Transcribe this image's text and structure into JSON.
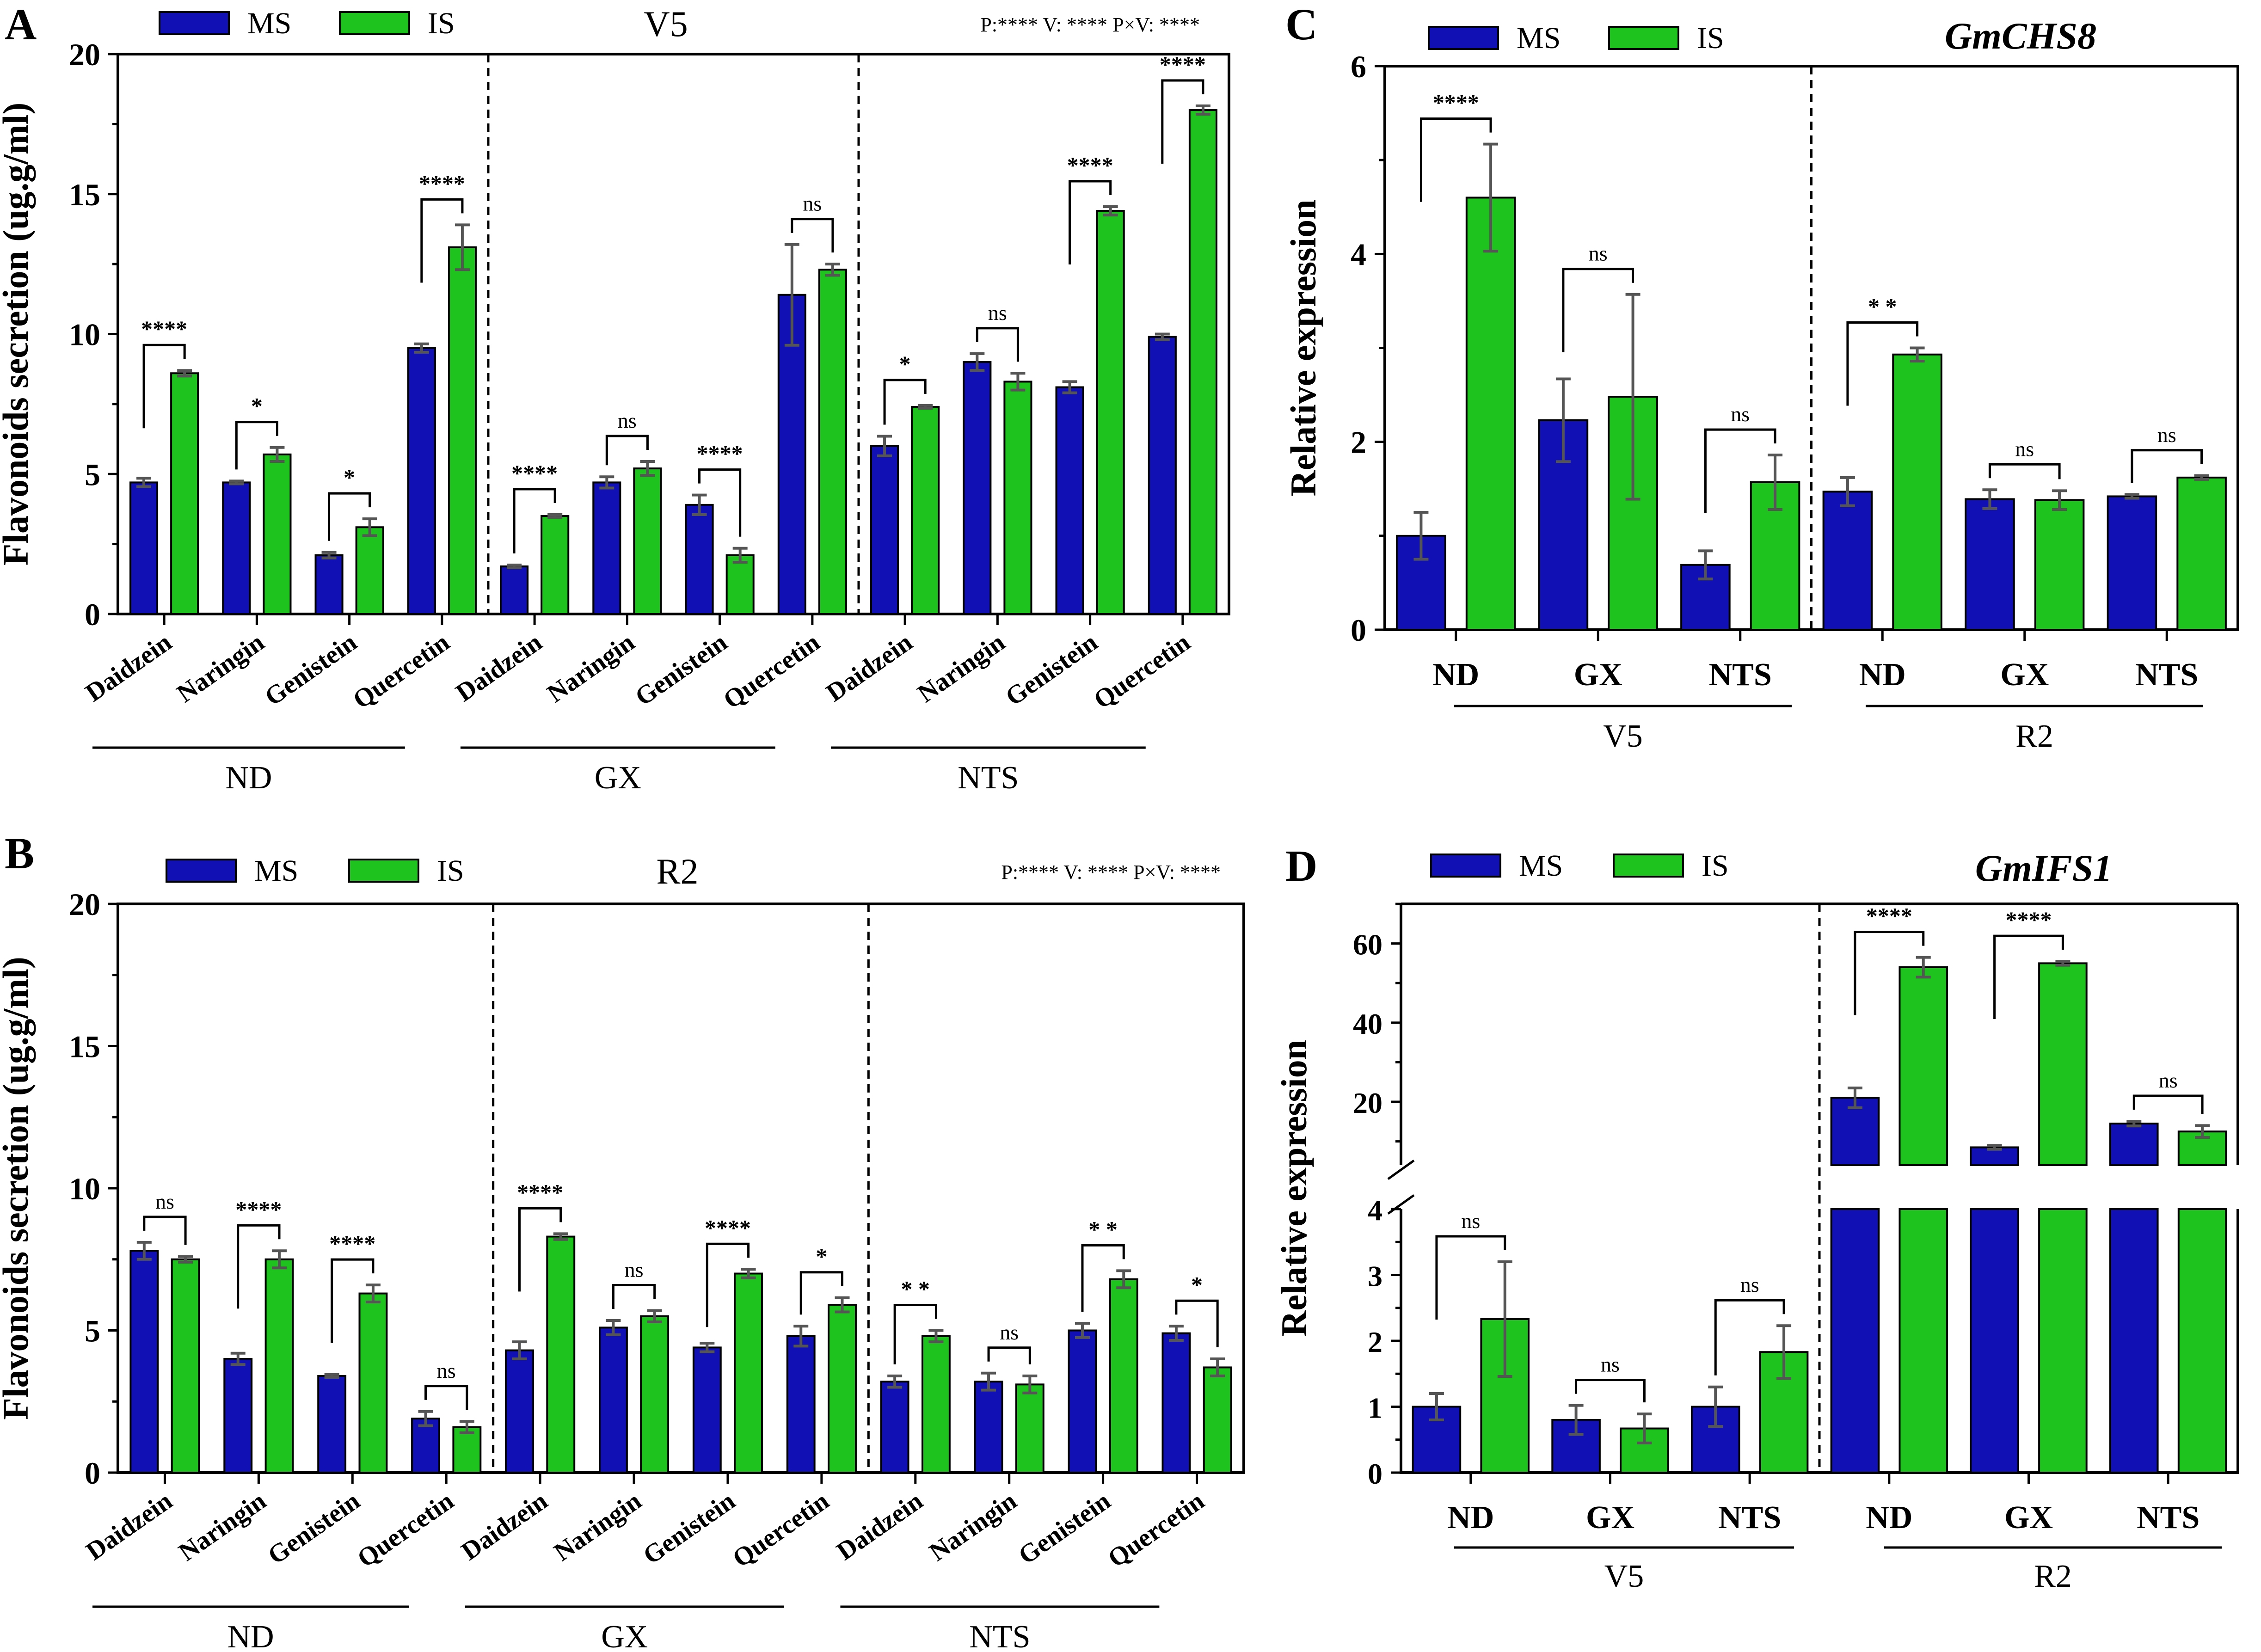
{
  "colors": {
    "ms": "#1010b4",
    "is": "#1ec31e"
  },
  "chart_data": [
    {
      "type": "bar",
      "panel": "A",
      "title": "V5",
      "stats": "P:**** V: **** P×V: ****",
      "ylabel": "Flavonoids secretion (ug.g/ml)",
      "ylim": [
        0,
        20
      ],
      "yticks": [
        0,
        5,
        10,
        15,
        20
      ],
      "legend": [
        "MS",
        "IS"
      ],
      "groups": [
        "ND",
        "GX",
        "NTS"
      ],
      "categories": [
        "Daidzein",
        "Naringin",
        "Genistein",
        "Quercetin",
        "Daidzein",
        "Naringin",
        "Genistein",
        "Quercetin",
        "Daidzein",
        "Naringin",
        "Genistein",
        "Quercetin"
      ],
      "series": [
        {
          "name": "MS",
          "values": [
            4.7,
            4.7,
            2.1,
            9.5,
            1.7,
            4.7,
            3.9,
            11.4,
            6.0,
            9.0,
            8.1,
            9.9
          ],
          "errors": [
            0.15,
            0.05,
            0.1,
            0.15,
            0.05,
            0.2,
            0.35,
            1.8,
            0.35,
            0.3,
            0.2,
            0.1
          ]
        },
        {
          "name": "IS",
          "values": [
            8.6,
            5.7,
            3.1,
            13.1,
            3.5,
            5.2,
            2.1,
            12.3,
            7.4,
            8.3,
            14.4,
            18.0
          ],
          "errors": [
            0.1,
            0.25,
            0.3,
            0.8,
            0.05,
            0.25,
            0.25,
            0.2,
            0.05,
            0.3,
            0.15,
            0.15
          ]
        }
      ],
      "significance": [
        "****",
        "*",
        "*",
        "****",
        "****",
        "ns",
        "****",
        "ns",
        "*",
        "ns",
        "****",
        "****"
      ]
    },
    {
      "type": "bar",
      "panel": "B",
      "title": "R2",
      "stats": "P:**** V: **** P×V: ****",
      "ylabel": "Flavonoids secretion (ug.g/ml)",
      "ylim": [
        0,
        20
      ],
      "yticks": [
        0,
        5,
        10,
        15,
        20
      ],
      "legend": [
        "MS",
        "IS"
      ],
      "groups": [
        "ND",
        "GX",
        "NTS"
      ],
      "categories": [
        "Daidzein",
        "Naringin",
        "Genistein",
        "Quercetin",
        "Daidzein",
        "Naringin",
        "Genistein",
        "Quercetin",
        "Daidzein",
        "Naringin",
        "Genistein",
        "Quercetin"
      ],
      "series": [
        {
          "name": "MS",
          "values": [
            7.8,
            4.0,
            3.4,
            1.9,
            4.3,
            5.1,
            4.4,
            4.8,
            3.2,
            3.2,
            5.0,
            4.9
          ],
          "errors": [
            0.3,
            0.2,
            0.05,
            0.25,
            0.3,
            0.25,
            0.15,
            0.35,
            0.2,
            0.3,
            0.25,
            0.25
          ]
        },
        {
          "name": "IS",
          "values": [
            7.5,
            7.5,
            6.3,
            1.6,
            8.3,
            5.5,
            7.0,
            5.9,
            4.8,
            3.1,
            6.8,
            3.7
          ],
          "errors": [
            0.1,
            0.3,
            0.3,
            0.2,
            0.1,
            0.2,
            0.15,
            0.25,
            0.2,
            0.3,
            0.3,
            0.3
          ]
        }
      ],
      "significance": [
        "ns",
        "****",
        "****",
        "ns",
        "****",
        "ns",
        "****",
        "*",
        "* *",
        "ns",
        "* *",
        "*"
      ]
    },
    {
      "type": "bar",
      "panel": "C",
      "title": "GmCHS8",
      "ylabel": "Relative expression",
      "ylim": [
        0,
        6
      ],
      "yticks": [
        0,
        2,
        4,
        6
      ],
      "legend": [
        "MS",
        "IS"
      ],
      "categories": [
        "ND",
        "GX",
        "NTS",
        "ND",
        "GX",
        "NTS"
      ],
      "groups": [
        "V5",
        "R2"
      ],
      "series": [
        {
          "name": "MS",
          "values": [
            1.0,
            2.23,
            0.69,
            1.47,
            1.39,
            1.42
          ],
          "errors": [
            0.25,
            0.44,
            0.15,
            0.15,
            0.1,
            0.02
          ]
        },
        {
          "name": "IS",
          "values": [
            4.6,
            2.48,
            1.57,
            2.93,
            1.38,
            1.62
          ],
          "errors": [
            0.57,
            1.09,
            0.29,
            0.07,
            0.1,
            0.02
          ]
        }
      ],
      "significance": [
        "****",
        "ns",
        "ns",
        "* *",
        "ns",
        "ns"
      ]
    },
    {
      "type": "bar",
      "panel": "D",
      "title": "GmIFS1",
      "ylabel": "Relative expression",
      "y_break": true,
      "ylim_lower": [
        0,
        4
      ],
      "ylim_upper": [
        4,
        70
      ],
      "yticks_lower": [
        0,
        1,
        2,
        3,
        4
      ],
      "yticks_upper": [
        20,
        40,
        60
      ],
      "legend": [
        "MS",
        "IS"
      ],
      "categories": [
        "ND",
        "GX",
        "NTS",
        "ND",
        "GX",
        "NTS"
      ],
      "groups": [
        "V5",
        "R2"
      ],
      "series": [
        {
          "name": "MS",
          "values": [
            1.0,
            0.8,
            1.0,
            21,
            8.5,
            14.5
          ],
          "errors": [
            0.2,
            0.22,
            0.3,
            2.5,
            0.5,
            0.6
          ]
        },
        {
          "name": "IS",
          "values": [
            2.33,
            0.67,
            1.83,
            54,
            55,
            12.5
          ],
          "errors": [
            0.87,
            0.22,
            0.4,
            2.5,
            0.5,
            1.5
          ]
        }
      ],
      "significance": [
        "ns",
        "ns",
        "ns",
        "****",
        "****",
        "ns"
      ]
    }
  ]
}
